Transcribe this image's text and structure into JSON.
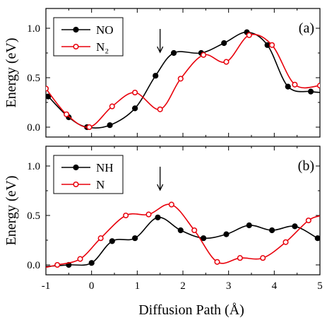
{
  "chart_data": [
    {
      "type": "line",
      "panel_label": "(a)",
      "xlabel": "Diffusion Path (Å)",
      "ylabel": "Energy (eV)",
      "xlim": [
        -1,
        5
      ],
      "ylim": [
        -0.1,
        1.2
      ],
      "x_ticks": [
        "-1",
        "0",
        "1",
        "2",
        "3",
        "4",
        "5"
      ],
      "y_ticks": [
        "0.0",
        "0.5",
        "1.0"
      ],
      "arrow_x": 1.5,
      "legend_position": "top-left",
      "series": [
        {
          "name": "NO",
          "color": "#000000",
          "marker": "filled-circle",
          "x": [
            -0.95,
            -0.5,
            -0.1,
            0.4,
            0.95,
            1.4,
            1.8,
            2.4,
            2.9,
            3.4,
            3.85,
            4.3,
            4.8
          ],
          "y": [
            0.31,
            0.1,
            0.0,
            0.02,
            0.19,
            0.52,
            0.75,
            0.75,
            0.85,
            0.96,
            0.83,
            0.41,
            0.36
          ]
        },
        {
          "name": "N₂",
          "color": "#e8000b",
          "marker": "open-circle",
          "x": [
            -1.0,
            -0.55,
            -0.05,
            0.45,
            0.95,
            1.5,
            1.95,
            2.45,
            2.95,
            3.45,
            3.95,
            4.45,
            5.0
          ],
          "y": [
            0.39,
            0.13,
            0.0,
            0.21,
            0.35,
            0.18,
            0.49,
            0.73,
            0.66,
            0.93,
            0.83,
            0.43,
            0.42
          ]
        }
      ]
    },
    {
      "type": "line",
      "panel_label": "(b)",
      "xlabel": "Diffusion Path (Å)",
      "ylabel": "Energy (eV)",
      "xlim": [
        -1,
        5
      ],
      "ylim": [
        -0.1,
        1.2
      ],
      "x_ticks": [
        "-1",
        "0",
        "1",
        "2",
        "3",
        "4",
        "5"
      ],
      "y_ticks": [
        "0.0",
        "0.5",
        "1.0"
      ],
      "arrow_x": 1.5,
      "legend_position": "top-left",
      "series": [
        {
          "name": "NH",
          "color": "#000000",
          "marker": "filled-circle",
          "x": [
            -0.5,
            0.0,
            0.45,
            0.95,
            1.45,
            1.95,
            2.45,
            2.95,
            3.45,
            3.95,
            4.45,
            4.95
          ],
          "y": [
            0.0,
            0.02,
            0.24,
            0.27,
            0.48,
            0.35,
            0.27,
            0.31,
            0.4,
            0.35,
            0.39,
            0.27
          ]
        },
        {
          "name": "N",
          "color": "#e8000b",
          "marker": "open-circle",
          "x": [
            -0.75,
            -0.25,
            0.2,
            0.75,
            1.25,
            1.75,
            2.25,
            2.75,
            3.25,
            3.75,
            4.25,
            4.75
          ],
          "y": [
            0.0,
            0.06,
            0.27,
            0.5,
            0.51,
            0.61,
            0.35,
            0.03,
            0.07,
            0.07,
            0.23,
            0.45
          ]
        }
      ]
    }
  ]
}
